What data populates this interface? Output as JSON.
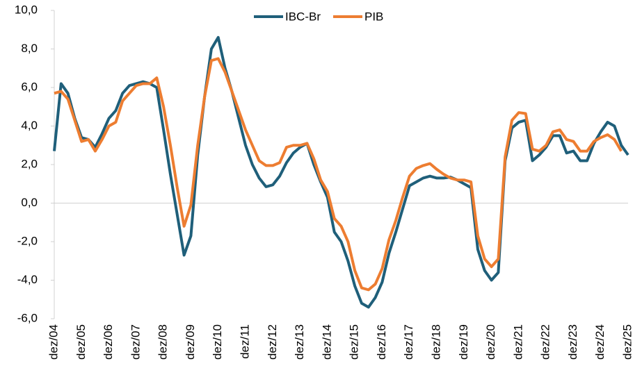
{
  "chart_data": {
    "type": "line",
    "categories": [
      "dez/04",
      null,
      null,
      null,
      "dez/05",
      null,
      null,
      null,
      "dez/06",
      null,
      null,
      null,
      "dez/07",
      null,
      null,
      null,
      "dez/08",
      null,
      null,
      null,
      "dez/09",
      null,
      null,
      null,
      "dez/10",
      null,
      null,
      null,
      "dez/11",
      null,
      null,
      null,
      "dez/12",
      null,
      null,
      null,
      "dez/13",
      null,
      null,
      null,
      "dez/14",
      null,
      null,
      null,
      "dez/15",
      null,
      null,
      null,
      "dez/16",
      null,
      null,
      null,
      "dez/17",
      null,
      null,
      null,
      "dez/18",
      null,
      null,
      null,
      "dez/19",
      null,
      null,
      null,
      "dez/20",
      null,
      null,
      null,
      "dez/21",
      null,
      null,
      null,
      "dez/22",
      null,
      null,
      null,
      "dez/23",
      null,
      null,
      null,
      "dez/24",
      null,
      null,
      null,
      "dez/25"
    ],
    "series": [
      {
        "name": "IBC-Br",
        "color": "#1f5f7a",
        "values": [
          2.7,
          6.2,
          5.7,
          4.4,
          3.4,
          3.3,
          2.9,
          3.6,
          4.4,
          4.8,
          5.7,
          6.1,
          6.2,
          6.3,
          6.2,
          6.0,
          3.8,
          1.5,
          -0.6,
          -2.7,
          -1.7,
          2.5,
          5.5,
          8.0,
          8.6,
          7.0,
          5.8,
          4.4,
          3.0,
          2.0,
          1.3,
          0.85,
          0.95,
          1.4,
          2.1,
          2.6,
          2.9,
          3.1,
          2.0,
          1.1,
          0.3,
          -1.5,
          -2.0,
          -3.0,
          -4.3,
          -5.2,
          -5.4,
          -4.9,
          -4.1,
          -2.6,
          -1.5,
          -0.3,
          0.9,
          1.1,
          1.3,
          1.4,
          1.3,
          1.3,
          1.35,
          1.2,
          1.0,
          0.8,
          -2.4,
          -3.5,
          -4.0,
          -3.6,
          2.2,
          3.9,
          4.2,
          4.3,
          2.2,
          2.5,
          2.9,
          3.5,
          3.5,
          2.6,
          2.7,
          2.2,
          2.2,
          3.1,
          3.7,
          4.2,
          4.0,
          3.0,
          2.5
        ]
      },
      {
        "name": "PIB",
        "color": "#ed7d31",
        "values": [
          5.7,
          5.8,
          5.4,
          4.3,
          3.2,
          3.3,
          2.7,
          3.3,
          4.0,
          4.2,
          5.3,
          5.7,
          6.1,
          6.2,
          6.2,
          6.5,
          5.0,
          3.0,
          0.8,
          -1.2,
          -0.1,
          3.0,
          5.5,
          7.4,
          7.5,
          6.8,
          5.8,
          4.8,
          3.8,
          3.0,
          2.2,
          1.95,
          1.95,
          2.1,
          2.9,
          3.0,
          3.0,
          3.1,
          2.3,
          1.2,
          0.6,
          -0.8,
          -1.2,
          -2.0,
          -3.5,
          -4.4,
          -4.5,
          -4.2,
          -3.4,
          -1.9,
          -0.9,
          0.3,
          1.4,
          1.8,
          1.95,
          2.05,
          1.75,
          1.5,
          1.3,
          1.2,
          1.2,
          1.1,
          -1.7,
          -2.9,
          -3.3,
          -2.9,
          2.4,
          4.3,
          4.7,
          4.65,
          2.8,
          2.7,
          3.0,
          3.7,
          3.8,
          3.3,
          3.2,
          2.7,
          2.7,
          3.2,
          3.4,
          3.55,
          3.3,
          2.7,
          null
        ]
      }
    ],
    "ylim": [
      -6,
      10
    ],
    "yticks": [
      {
        "value": -6,
        "label": "-6,0"
      },
      {
        "value": -4,
        "label": "-4,0"
      },
      {
        "value": -2,
        "label": "-2,0"
      },
      {
        "value": 0,
        "label": "0,0"
      },
      {
        "value": 2,
        "label": "2,0"
      },
      {
        "value": 4,
        "label": "4,0"
      },
      {
        "value": 6,
        "label": "6,0"
      },
      {
        "value": 8,
        "label": "8,0"
      },
      {
        "value": 10,
        "label": "10,0"
      }
    ],
    "grid": false,
    "legend": "top"
  }
}
